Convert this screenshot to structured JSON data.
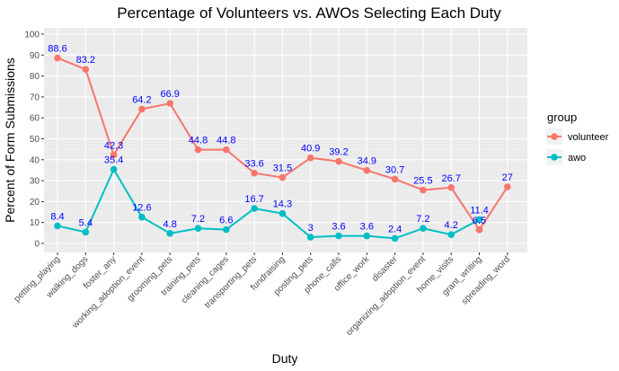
{
  "chart_data": {
    "type": "line",
    "title": "Percentage of Volunteers vs. AWOs Selecting Each Duty",
    "xlabel": "Duty",
    "ylabel": "Percent of Form Submissions",
    "ylim": [
      0,
      100
    ],
    "yticks": [
      0,
      10,
      20,
      30,
      40,
      50,
      60,
      70,
      80,
      90,
      100
    ],
    "grid": true,
    "legend": {
      "title": "group",
      "placement": "right"
    },
    "categories": [
      "petting_playing",
      "walking_dogs",
      "foster_any",
      "working_adoption_event",
      "grooming_pets",
      "training_pets",
      "cleaning_cages",
      "transporting_pets",
      "fundraising",
      "posting_pets",
      "phone_calls",
      "office_work",
      "disaster",
      "organizing_adoption_event",
      "home_visits",
      "grant_writing",
      "spreading_word"
    ],
    "series": [
      {
        "name": "volunteer",
        "color": "#F8766D",
        "values": [
          88.6,
          83.2,
          42.3,
          64.2,
          66.9,
          44.8,
          44.8,
          33.6,
          31.5,
          40.9,
          39.2,
          34.9,
          30.7,
          25.5,
          26.7,
          6.5,
          27
        ]
      },
      {
        "name": "awo",
        "color": "#00BFC4",
        "values": [
          8.4,
          5.4,
          35.4,
          12.6,
          4.8,
          7.2,
          6.6,
          16.7,
          14.3,
          3,
          3.6,
          3.6,
          2.4,
          7.2,
          4.2,
          11.4,
          null
        ]
      }
    ],
    "panel_color": "#EBEBEB",
    "label_color": "#0000FF"
  }
}
